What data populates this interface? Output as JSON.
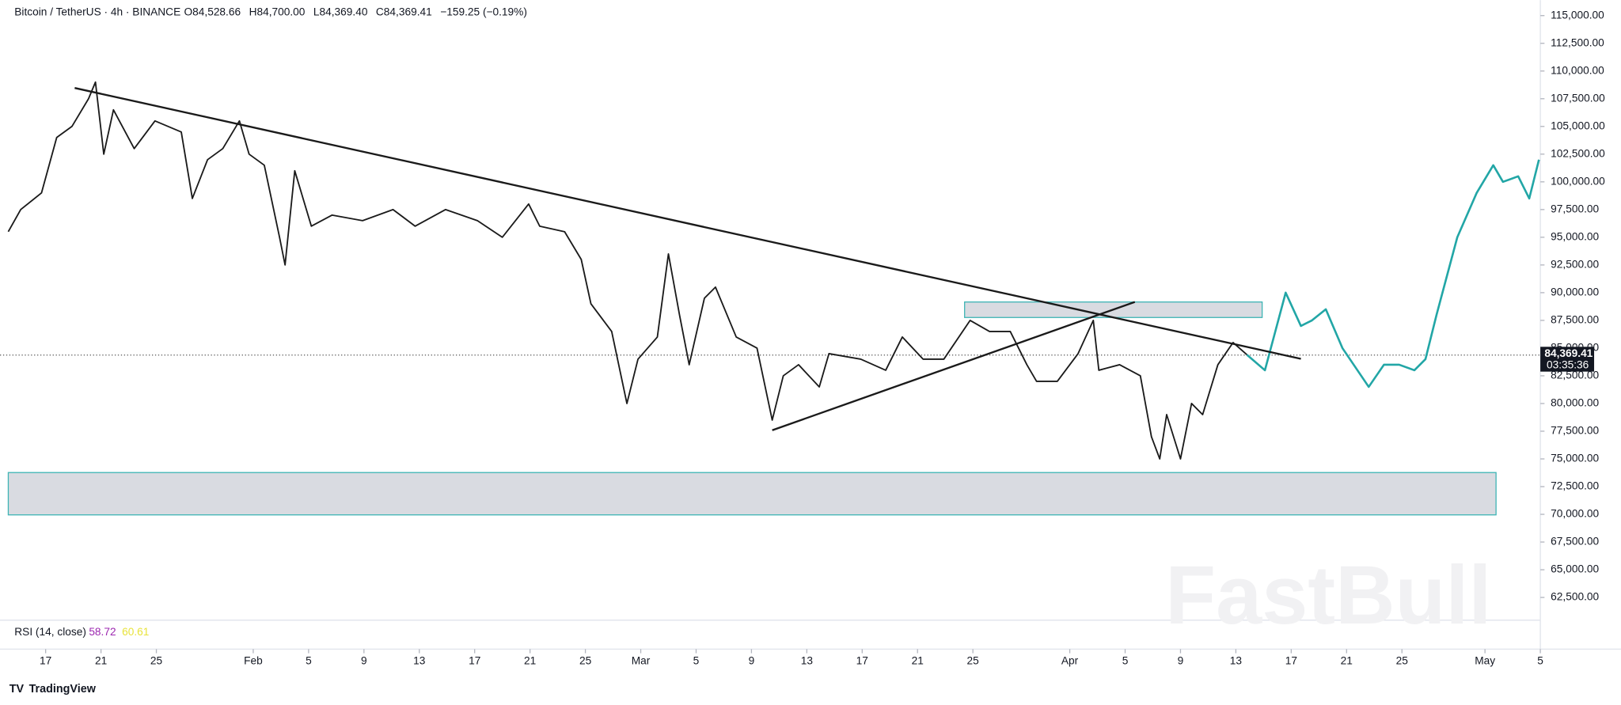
{
  "chart_data": {
    "type": "line",
    "title": "Bitcoin / TetherUS · 4h · BINANCE",
    "ohlc": [
      "O84,528.66",
      "H84,700.00",
      "L84,369.40",
      "C84,369.41",
      "−159.25 (−0.19%)"
    ],
    "last_price": {
      "value": 84369.41,
      "label": "84,369.41"
    },
    "countdown": "03:35:36",
    "indicator": {
      "name": "RSI (14, close)",
      "values": [
        "58.72",
        "60.61"
      ]
    },
    "watermark": "FastBull",
    "brand": "TradingView",
    "xlim": [
      14.3,
      125.6
    ],
    "ylim": [
      60450,
      116400
    ],
    "xticks": [
      17,
      21,
      25,
      {
        "value": 32,
        "label": "Feb"
      },
      {
        "value": 36,
        "label": "5"
      },
      {
        "value": 40,
        "label": "9"
      },
      {
        "value": 44,
        "label": "13"
      },
      {
        "value": 48,
        "label": "17"
      },
      {
        "value": 52,
        "label": "21"
      },
      {
        "value": 56,
        "label": "25"
      },
      {
        "value": 60,
        "label": "Mar"
      },
      {
        "value": 64,
        "label": "5"
      },
      {
        "value": 68,
        "label": "9"
      },
      {
        "value": 72,
        "label": "13"
      },
      {
        "value": 76,
        "label": "17"
      },
      {
        "value": 80,
        "label": "21"
      },
      {
        "value": 84,
        "label": "25"
      },
      {
        "value": 91,
        "label": "Apr"
      },
      {
        "value": 95,
        "label": "5"
      },
      {
        "value": 99,
        "label": "9"
      },
      {
        "value": 103,
        "label": "13"
      },
      {
        "value": 107,
        "label": "17"
      },
      {
        "value": 111,
        "label": "21"
      },
      {
        "value": 115,
        "label": "25"
      },
      {
        "value": 121,
        "label": "May"
      },
      {
        "value": 125,
        "label": "5"
      }
    ],
    "yticks": [
      {
        "value": 62500,
        "label": "62,500.00"
      },
      {
        "value": 65000,
        "label": "65,000.00"
      },
      {
        "value": 67500,
        "label": "67,500.00"
      },
      {
        "value": 70000,
        "label": "70,000.00"
      },
      {
        "value": 72500,
        "label": "72,500.00"
      },
      {
        "value": 75000,
        "label": "75,000.00"
      },
      {
        "value": 77500,
        "label": "77,500.00"
      },
      {
        "value": 80000,
        "label": "80,000.00"
      },
      {
        "value": 82500,
        "label": "82,500.00"
      },
      {
        "value": 85000,
        "label": "85,000.00"
      },
      {
        "value": 87500,
        "label": "87,500.00"
      },
      {
        "value": 90000,
        "label": "90,000.00"
      },
      {
        "value": 92500,
        "label": "92,500.00"
      },
      {
        "value": 95000,
        "label": "95,000.00"
      },
      {
        "value": 97500,
        "label": "97,500.00"
      },
      {
        "value": 100000,
        "label": "100,000.00"
      },
      {
        "value": 102500,
        "label": "102,500.00"
      },
      {
        "value": 105000,
        "label": "105,000.00"
      },
      {
        "value": 107500,
        "label": "107,500.00"
      },
      {
        "value": 110000,
        "label": "110,000.00"
      },
      {
        "value": 112500,
        "label": "112,500.00"
      },
      {
        "value": 115000,
        "label": "115,000.00"
      }
    ],
    "series": [
      {
        "color": "#1a1a1a",
        "x": [
          14.3,
          15.2,
          16.7,
          17.8,
          18.9,
          20.1,
          20.6,
          21.2,
          21.9,
          23.4,
          24.9,
          26.8,
          27.6,
          28.7,
          29.8,
          31.0,
          31.7,
          32.8,
          33.9,
          34.3,
          35.0,
          36.2,
          37.7,
          39.9,
          42.1,
          43.7,
          45.9,
          48.2,
          50.0,
          51.9,
          52.7,
          54.5,
          55.7,
          56.4,
          57.9,
          59.0,
          59.8,
          61.2,
          62.0,
          62.8,
          63.5,
          64.6,
          65.4,
          66.9,
          68.4,
          69.5,
          70.3,
          71.4,
          72.9,
          73.6,
          75.9,
          77.7,
          78.9,
          80.4,
          81.9,
          83.8,
          85.2,
          86.7,
          87.9,
          88.6,
          90.1,
          91.6,
          92.7,
          93.1,
          94.6,
          96.1,
          96.9,
          97.5,
          98.0,
          99.0,
          99.8,
          100.6,
          101.7,
          102.8,
          103.8
        ],
        "values": [
          95500,
          97500,
          99000,
          104000,
          105000,
          107500,
          109000,
          102500,
          106500,
          103000,
          105500,
          104500,
          98500,
          102000,
          103000,
          105500,
          102500,
          101500,
          95000,
          92500,
          101000,
          96000,
          97000,
          96500,
          97500,
          96000,
          97500,
          96500,
          95000,
          98000,
          96000,
          95500,
          93000,
          89000,
          86500,
          80000,
          84000,
          86000,
          93500,
          88000,
          83500,
          89500,
          90500,
          86000,
          85000,
          78500,
          82500,
          83500,
          81500,
          84500,
          84000,
          83000,
          86000,
          84000,
          84000,
          87500,
          86500,
          86500,
          83500,
          82000,
          82000,
          84500,
          87500,
          83000,
          83500,
          82500,
          77000,
          75000,
          79000,
          75000,
          80000,
          79000,
          83500,
          85500,
          84400
        ]
      },
      {
        "color": "#22a6a6",
        "x": [
          103.8,
          105.1,
          106.6,
          107.7,
          108.5,
          109.5,
          110.7,
          112.6,
          113.7,
          114.8,
          115.9,
          116.7,
          117.5,
          119.0,
          120.4,
          121.6,
          122.3,
          123.4,
          124.2,
          124.9
        ],
        "values": [
          84400,
          83000,
          90000,
          87000,
          87500,
          88500,
          85000,
          81500,
          83500,
          83500,
          83000,
          84000,
          88000,
          95000,
          99000,
          101500,
          100000,
          100500,
          98500,
          102000
        ]
      }
    ],
    "trendlines": [
      [
        [
          19.1,
          108470
        ],
        [
          107.7,
          84030
        ]
      ],
      [
        [
          69.5,
          77590
        ],
        [
          95.7,
          89160
        ]
      ]
    ],
    "zones": [
      {
        "x": [
          14.3,
          121.8
        ],
        "y": [
          69950,
          73770
        ]
      },
      {
        "x": [
          83.4,
          104.9
        ],
        "y": [
          87760,
          89160
        ]
      }
    ]
  }
}
